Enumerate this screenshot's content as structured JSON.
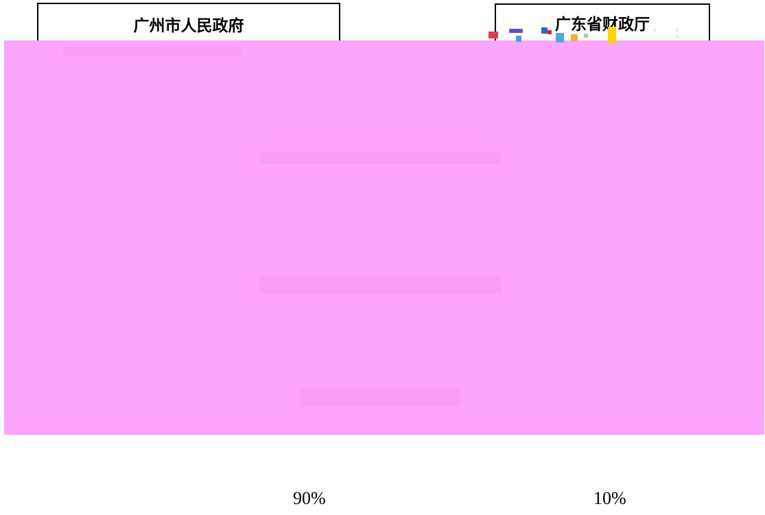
{
  "diagram": {
    "nodes": [
      {
        "id": "guangzhou-government",
        "label": "广州市人民政府"
      },
      {
        "id": "guangdong-finance-dept",
        "label": "广东省财政厅"
      }
    ],
    "shares": [
      {
        "node": "guangzhou-government",
        "value": "90%"
      },
      {
        "node": "guangdong-finance-dept",
        "value": "10%"
      }
    ]
  },
  "colors": {
    "redaction_overlay": "#fda4fd",
    "box_border": "#000000",
    "text": "#000000",
    "background": "#ffffff"
  }
}
